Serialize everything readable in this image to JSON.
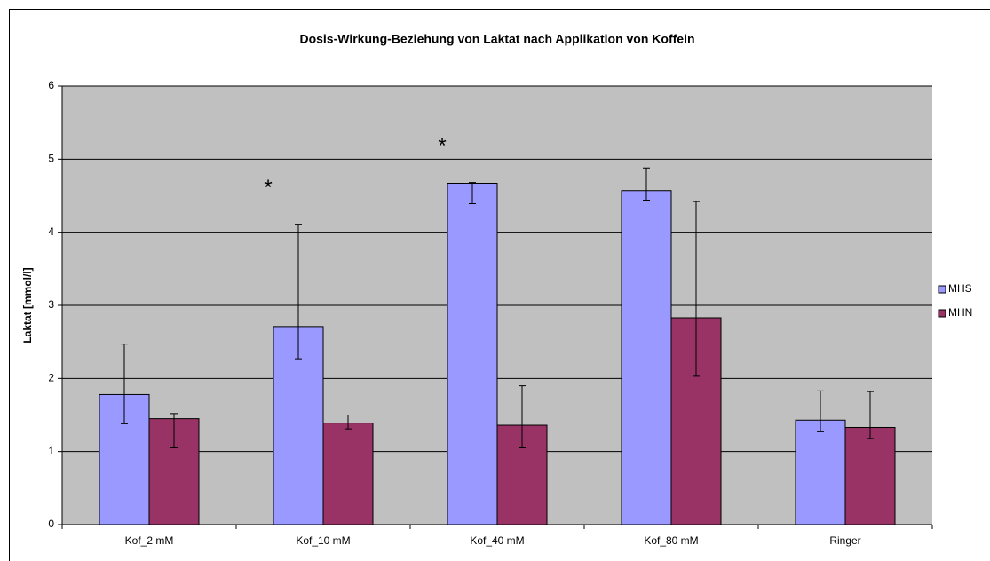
{
  "chart_data": {
    "type": "bar",
    "title": "Dosis-Wirkung-Beziehung von Laktat nach Applikation von Koffein",
    "ylabel": "Laktat [mmol/l]",
    "categories": [
      "Kof_2 mM",
      "Kof_10 mM",
      "Kof_40 mM",
      "Kof_80 mM",
      "Ringer"
    ],
    "series": [
      {
        "name": "MHS",
        "color": "#9999ff",
        "values": [
          1.78,
          2.71,
          4.67,
          4.57,
          1.43
        ],
        "err_plus": [
          0.69,
          1.4,
          0.01,
          0.31,
          0.4
        ],
        "err_minus": [
          0.4,
          0.44,
          0.28,
          0.13,
          0.16
        ]
      },
      {
        "name": "MHN",
        "color": "#993366",
        "values": [
          1.45,
          1.39,
          1.36,
          2.83,
          1.33
        ],
        "err_plus": [
          0.07,
          0.11,
          0.54,
          1.59,
          0.49
        ],
        "err_minus": [
          0.4,
          0.08,
          0.31,
          0.8,
          0.15
        ]
      }
    ],
    "annotations": [
      {
        "text": "*",
        "category": "Kof_10 mM"
      },
      {
        "text": "*",
        "category": "Kof_40 mM"
      }
    ],
    "ylim": [
      0,
      6
    ],
    "yticks": [
      0,
      1,
      2,
      3,
      4,
      5,
      6
    ],
    "grid": true,
    "legend": "right",
    "plot_color": "#c0c0c0"
  }
}
